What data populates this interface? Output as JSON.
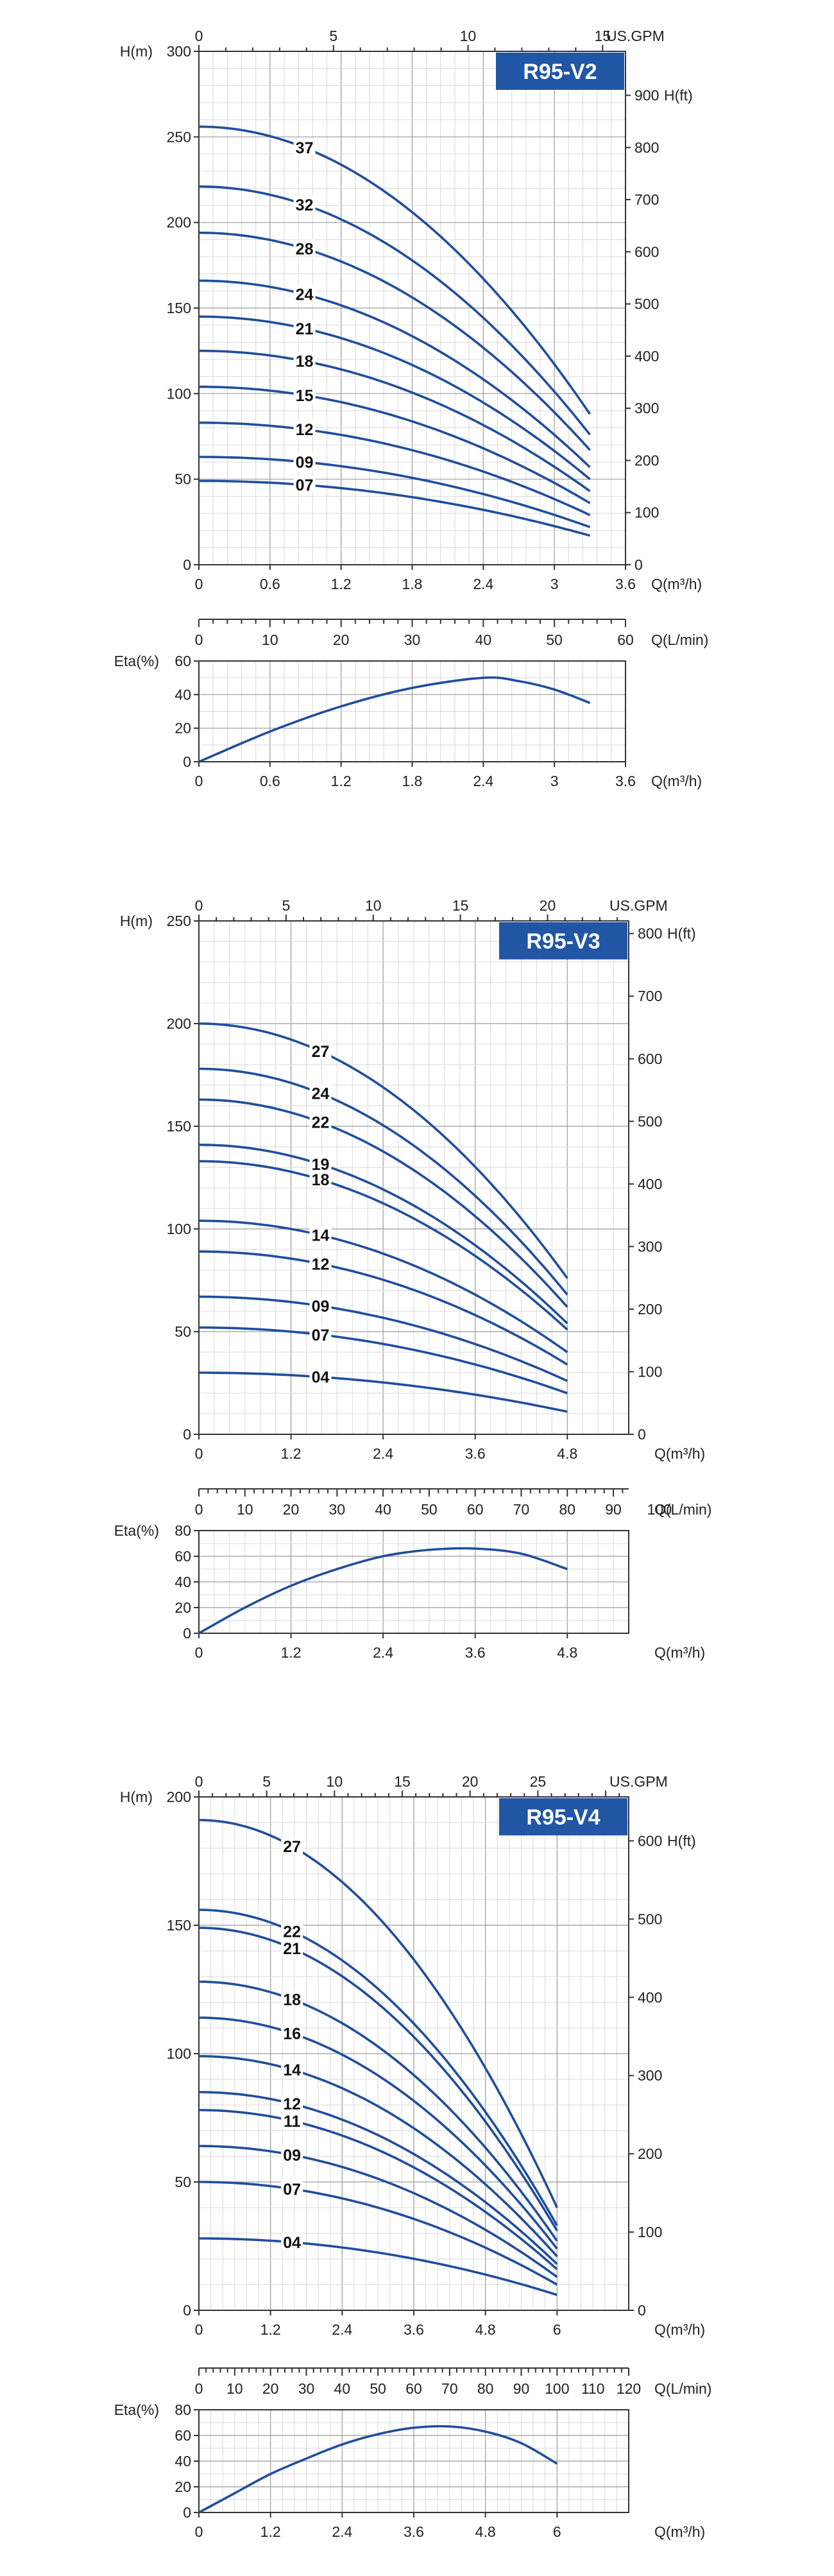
{
  "colors": {
    "curve": "#1f4e9c",
    "badge": "#2156a5",
    "grid_major": "#9a9a9a",
    "grid_minor": "#d9d9d9"
  },
  "chart_data": [
    {
      "type": "line",
      "title": "R95-V2",
      "ylabel": "H(m)",
      "ylabel_right": "H(ft)",
      "xlabel": "Q(m³/h)",
      "xlabel_lpm": "Q(L/min)",
      "xlabel_gpm": "US.GPM",
      "xlim": [
        0,
        3.6
      ],
      "ylim": [
        0,
        300
      ],
      "xticks": [
        "0",
        "0.6",
        "1.2",
        "1.8",
        "2.4",
        "3",
        "3.6"
      ],
      "yticks": [
        "0",
        "50",
        "100",
        "150",
        "200",
        "250",
        "300"
      ],
      "gpm_ticks": [
        "0",
        "5",
        "10",
        "15"
      ],
      "lpm_ticks": [
        "0",
        "10",
        "20",
        "30",
        "40",
        "50",
        "60"
      ],
      "ft_ticks": [
        "0",
        "100",
        "200",
        "300",
        "400",
        "500",
        "600",
        "700",
        "800",
        "900"
      ],
      "eta_ylabel": "Eta(%)",
      "eta_ylim": [
        0,
        60
      ],
      "eta_yticks": [
        "0",
        "20",
        "40",
        "60"
      ],
      "x_end": 3.3,
      "series": [
        {
          "name": "37",
          "h0": 256,
          "h_end": 88
        },
        {
          "name": "32",
          "h0": 221,
          "h_end": 76
        },
        {
          "name": "28",
          "h0": 194,
          "h_end": 67
        },
        {
          "name": "24",
          "h0": 166,
          "h_end": 57
        },
        {
          "name": "21",
          "h0": 145,
          "h_end": 50
        },
        {
          "name": "18",
          "h0": 125,
          "h_end": 43
        },
        {
          "name": "15",
          "h0": 104,
          "h_end": 36
        },
        {
          "name": "12",
          "h0": 83,
          "h_end": 29
        },
        {
          "name": "09",
          "h0": 63,
          "h_end": 22
        },
        {
          "name": "07",
          "h0": 49,
          "h_end": 17
        }
      ],
      "efficiency": [
        [
          0,
          0
        ],
        [
          0.6,
          18
        ],
        [
          1.2,
          33
        ],
        [
          1.8,
          44
        ],
        [
          2.4,
          50
        ],
        [
          2.7,
          48
        ],
        [
          3.0,
          43
        ],
        [
          3.3,
          35
        ]
      ]
    },
    {
      "type": "line",
      "title": "R95-V3",
      "ylabel": "H(m)",
      "ylabel_right": "H(ft)",
      "xlabel": "Q(m³/h)",
      "xlabel_lpm": "Q(L/min)",
      "xlabel_gpm": "US.GPM",
      "xlim": [
        0,
        5.6
      ],
      "ylim": [
        0,
        250
      ],
      "xticks": [
        "0",
        "1.2",
        "2.4",
        "3.6",
        "4.8"
      ],
      "yticks": [
        "0",
        "50",
        "100",
        "150",
        "200",
        "250"
      ],
      "gpm_ticks": [
        "0",
        "5",
        "10",
        "15",
        "20"
      ],
      "lpm_ticks": [
        "0",
        "10",
        "20",
        "30",
        "40",
        "50",
        "60",
        "70",
        "80",
        "90",
        "100"
      ],
      "ft_ticks": [
        "0",
        "100",
        "200",
        "300",
        "400",
        "500",
        "600",
        "700",
        "800"
      ],
      "eta_ylabel": "Eta(%)",
      "eta_ylim": [
        0,
        80
      ],
      "eta_yticks": [
        "0",
        "20",
        "40",
        "60",
        "80"
      ],
      "x_end": 4.8,
      "series": [
        {
          "name": "27",
          "h0": 200,
          "h_end": 76
        },
        {
          "name": "24",
          "h0": 178,
          "h_end": 68
        },
        {
          "name": "22",
          "h0": 163,
          "h_end": 62
        },
        {
          "name": "19",
          "h0": 141,
          "h_end": 54
        },
        {
          "name": "18",
          "h0": 133,
          "h_end": 51
        },
        {
          "name": "14",
          "h0": 104,
          "h_end": 40
        },
        {
          "name": "12",
          "h0": 89,
          "h_end": 34
        },
        {
          "name": "09",
          "h0": 67,
          "h_end": 26
        },
        {
          "name": "07",
          "h0": 52,
          "h_end": 20
        },
        {
          "name": "04",
          "h0": 30,
          "h_end": 11
        }
      ],
      "efficiency": [
        [
          0,
          0
        ],
        [
          0.6,
          20
        ],
        [
          1.2,
          37
        ],
        [
          1.8,
          50
        ],
        [
          2.4,
          60
        ],
        [
          3.0,
          65
        ],
        [
          3.6,
          66
        ],
        [
          4.2,
          62
        ],
        [
          4.8,
          50
        ]
      ]
    },
    {
      "type": "line",
      "title": "R95-V4",
      "ylabel": "H(m)",
      "ylabel_right": "H(ft)",
      "xlabel": "Q(m³/h)",
      "xlabel_lpm": "Q(L/min)",
      "xlabel_gpm": "US.GPM",
      "xlim": [
        0,
        7.2
      ],
      "ylim": [
        0,
        200
      ],
      "xticks": [
        "0",
        "1.2",
        "2.4",
        "3.6",
        "4.8",
        "6"
      ],
      "yticks": [
        "0",
        "50",
        "100",
        "150",
        "200"
      ],
      "gpm_ticks": [
        "0",
        "5",
        "10",
        "15",
        "20",
        "25"
      ],
      "lpm_ticks": [
        "0",
        "10",
        "20",
        "30",
        "40",
        "50",
        "60",
        "70",
        "80",
        "90",
        "100",
        "110",
        "120"
      ],
      "ft_ticks": [
        "0",
        "100",
        "200",
        "300",
        "400",
        "500",
        "600"
      ],
      "eta_ylabel": "Eta(%)",
      "eta_ylim": [
        0,
        80
      ],
      "eta_yticks": [
        "0",
        "20",
        "40",
        "60",
        "80"
      ],
      "x_end": 6.0,
      "series": [
        {
          "name": "27",
          "h0": 191,
          "h_end": 40
        },
        {
          "name": "22",
          "h0": 156,
          "h_end": 33
        },
        {
          "name": "21",
          "h0": 149,
          "h_end": 31
        },
        {
          "name": "18",
          "h0": 128,
          "h_end": 27
        },
        {
          "name": "16",
          "h0": 114,
          "h_end": 24
        },
        {
          "name": "14",
          "h0": 99,
          "h_end": 21
        },
        {
          "name": "12",
          "h0": 85,
          "h_end": 18
        },
        {
          "name": "11",
          "h0": 78,
          "h_end": 16
        },
        {
          "name": "09",
          "h0": 64,
          "h_end": 13
        },
        {
          "name": "07",
          "h0": 50,
          "h_end": 10
        },
        {
          "name": "04",
          "h0": 28,
          "h_end": 6
        }
      ],
      "efficiency": [
        [
          0,
          0
        ],
        [
          0.6,
          15
        ],
        [
          1.2,
          30
        ],
        [
          1.8,
          42
        ],
        [
          2.4,
          53
        ],
        [
          3.0,
          61
        ],
        [
          3.6,
          66
        ],
        [
          4.2,
          67
        ],
        [
          4.8,
          63
        ],
        [
          5.4,
          54
        ],
        [
          6.0,
          38
        ]
      ]
    }
  ]
}
